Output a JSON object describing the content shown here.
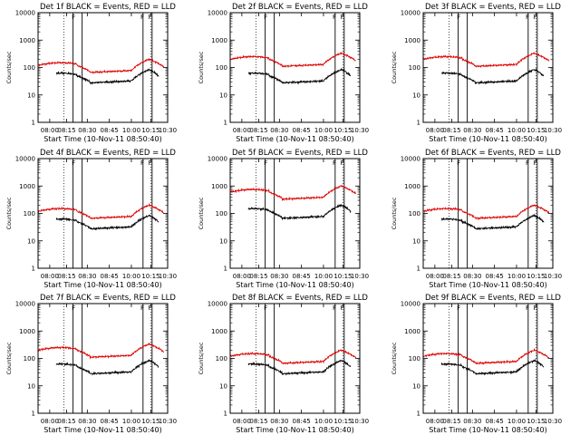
{
  "chart_data": [
    {
      "type": "line",
      "title": "Det 1f BLACK = Events, RED = LLD",
      "ylabel": "Counts/sec",
      "xlabel": "Start Time (10-Nov-11 08:50:40)",
      "yscale": "log",
      "ylim": [
        1,
        10000
      ],
      "x_ticks": [
        "08:00",
        "08:15",
        "08:30",
        "08:45",
        "10:00",
        "10:15",
        "10:30"
      ],
      "y_ticks": [
        "1",
        "10",
        "100",
        "1000",
        "10000"
      ],
      "markers": [
        "F",
        "F",
        "F"
      ],
      "series": [
        {
          "name": "Events",
          "color": "#000000",
          "start": 0.6,
          "end": 1.6,
          "base": 25
        },
        {
          "name": "LLD",
          "color": "#dd0000",
          "start": -0.1,
          "end": 2.4,
          "base": 60
        }
      ]
    },
    {
      "type": "line",
      "title": "Det 2f BLACK = Events, RED = LLD",
      "ylabel": "Counts/sec",
      "xlabel": "Start Time (10-Nov-11 08:50:40)",
      "yscale": "log",
      "ylim": [
        1,
        10000
      ],
      "x_ticks": [
        "08:00",
        "08:15",
        "08:30",
        "08:45",
        "10:00",
        "10:15",
        "10:30"
      ],
      "y_ticks": [
        "1",
        "10",
        "100",
        "1000",
        "10000"
      ],
      "markers": [
        "F",
        "F",
        "F"
      ],
      "series": [
        {
          "name": "Events",
          "color": "#000000",
          "start": 0.7,
          "end": 1.5,
          "base": 25
        },
        {
          "name": "LLD",
          "color": "#dd0000",
          "start": 0.4,
          "end": 2.7,
          "base": 100
        }
      ]
    },
    {
      "type": "line",
      "title": "Det 3f BLACK = Events, RED = LLD",
      "ylabel": "Counts/sec",
      "xlabel": "Start Time (10-Nov-11 08:50:40)",
      "yscale": "log",
      "ylim": [
        1,
        10000
      ],
      "x_ticks": [
        "08:00",
        "08:15",
        "08:30",
        "08:45",
        "10:00",
        "10:15",
        "10:30"
      ],
      "y_ticks": [
        "1",
        "10",
        "100",
        "1000",
        "10000"
      ],
      "markers": [
        "F",
        "F",
        "F"
      ],
      "series": [
        {
          "name": "Events",
          "color": "#000000",
          "start": 0.8,
          "end": 2.2,
          "base": 25
        },
        {
          "name": "LLD",
          "color": "#dd0000",
          "start": -0.3,
          "end": 2.5,
          "base": 100
        }
      ]
    },
    {
      "type": "line",
      "title": "Det 4f BLACK = Events, RED = LLD",
      "ylabel": "Counts/sec",
      "xlabel": "Start Time (10-Nov-11 08:50:40)",
      "yscale": "log",
      "ylim": [
        1,
        10000
      ],
      "x_ticks": [
        "08:00",
        "08:15",
        "08:30",
        "08:45",
        "10:00",
        "10:15",
        "10:30"
      ],
      "y_ticks": [
        "1",
        "10",
        "100",
        "1000",
        "10000"
      ],
      "markers": [
        "F",
        "F",
        "F"
      ],
      "series": [
        {
          "name": "Events",
          "color": "#000000",
          "start": 0.6,
          "end": 1.5,
          "base": 25
        },
        {
          "name": "LLD",
          "color": "#dd0000",
          "start": 0.1,
          "end": 2.2,
          "base": 60
        }
      ]
    },
    {
      "type": "line",
      "title": "Det 5f BLACK = Events, RED = LLD",
      "ylabel": "Counts/sec",
      "xlabel": "Start Time (10-Nov-11 08:50:40)",
      "yscale": "log",
      "ylim": [
        1,
        10000
      ],
      "x_ticks": [
        "08:00",
        "08:15",
        "08:30",
        "08:45",
        "10:00",
        "10:15",
        "10:30"
      ],
      "y_ticks": [
        "1",
        "10",
        "100",
        "1000",
        "10000"
      ],
      "markers": [
        "F",
        "F",
        "F"
      ],
      "series": [
        {
          "name": "Events",
          "color": "#000000",
          "start": 1.6,
          "end": 1.7,
          "base": 60
        },
        {
          "name": "LLD",
          "color": "#dd0000",
          "start": -0.2,
          "end": 2.4,
          "base": 300
        }
      ]
    },
    {
      "type": "line",
      "title": "Det 6f BLACK = Events, RED = LLD",
      "ylabel": "Counts/sec",
      "xlabel": "Start Time (10-Nov-11 08:50:40)",
      "yscale": "log",
      "ylim": [
        1,
        10000
      ],
      "x_ticks": [
        "08:00",
        "08:15",
        "08:30",
        "08:45",
        "10:00",
        "10:15",
        "10:30"
      ],
      "y_ticks": [
        "1",
        "10",
        "100",
        "1000",
        "10000"
      ],
      "markers": [
        "F",
        "F",
        "F"
      ],
      "series": [
        {
          "name": "Events",
          "color": "#000000",
          "start": 0.8,
          "end": 1.4,
          "base": 25
        },
        {
          "name": "LLD",
          "color": "#dd0000",
          "start": 0.1,
          "end": 2.6,
          "base": 60
        }
      ]
    },
    {
      "type": "line",
      "title": "Det 7f BLACK = Events, RED = LLD",
      "ylabel": "Counts/sec",
      "xlabel": "Start Time (10-Nov-11 08:50:40)",
      "yscale": "log",
      "ylim": [
        1,
        10000
      ],
      "x_ticks": [
        "08:00",
        "08:15",
        "08:30",
        "08:45",
        "10:00",
        "10:15",
        "10:30"
      ],
      "y_ticks": [
        "1",
        "10",
        "100",
        "1000",
        "10000"
      ],
      "markers": [
        "F",
        "F",
        "F"
      ],
      "series": [
        {
          "name": "Events",
          "color": "#000000",
          "start": 0.6,
          "end": 1.5,
          "base": 25
        },
        {
          "name": "LLD",
          "color": "#dd0000",
          "start": 0.3,
          "end": 2.7,
          "base": 100
        }
      ]
    },
    {
      "type": "line",
      "title": "Det 8f BLACK = Events, RED = LLD",
      "ylabel": "Counts/sec",
      "xlabel": "Start Time (10-Nov-11 08:50:40)",
      "yscale": "log",
      "ylim": [
        1,
        10000
      ],
      "x_ticks": [
        "08:00",
        "08:15",
        "08:30",
        "08:45",
        "10:00",
        "10:15",
        "10:30"
      ],
      "y_ticks": [
        "1",
        "10",
        "100",
        "1000",
        "10000"
      ],
      "markers": [
        "F",
        "F",
        "F"
      ],
      "series": [
        {
          "name": "Events",
          "color": "#000000",
          "start": 0.7,
          "end": 1.5,
          "base": 25
        },
        {
          "name": "LLD",
          "color": "#dd0000",
          "start": 0.2,
          "end": 2.5,
          "base": 60
        }
      ]
    },
    {
      "type": "line",
      "title": "Det 9f BLACK = Events, RED = LLD",
      "ylabel": "Counts/sec",
      "xlabel": "Start Time (10-Nov-11 08:50:40)",
      "yscale": "log",
      "ylim": [
        1,
        10000
      ],
      "x_ticks": [
        "08:00",
        "08:15",
        "08:30",
        "08:45",
        "10:00",
        "10:15",
        "10:30"
      ],
      "y_ticks": [
        "1",
        "10",
        "100",
        "1000",
        "10000"
      ],
      "markers": [
        "F",
        "F",
        "F"
      ],
      "series": [
        {
          "name": "Events",
          "color": "#000000",
          "start": 0.8,
          "end": 2.0,
          "base": 25
        },
        {
          "name": "LLD",
          "color": "#dd0000",
          "start": 0.1,
          "end": 2.4,
          "base": 60
        }
      ]
    }
  ]
}
